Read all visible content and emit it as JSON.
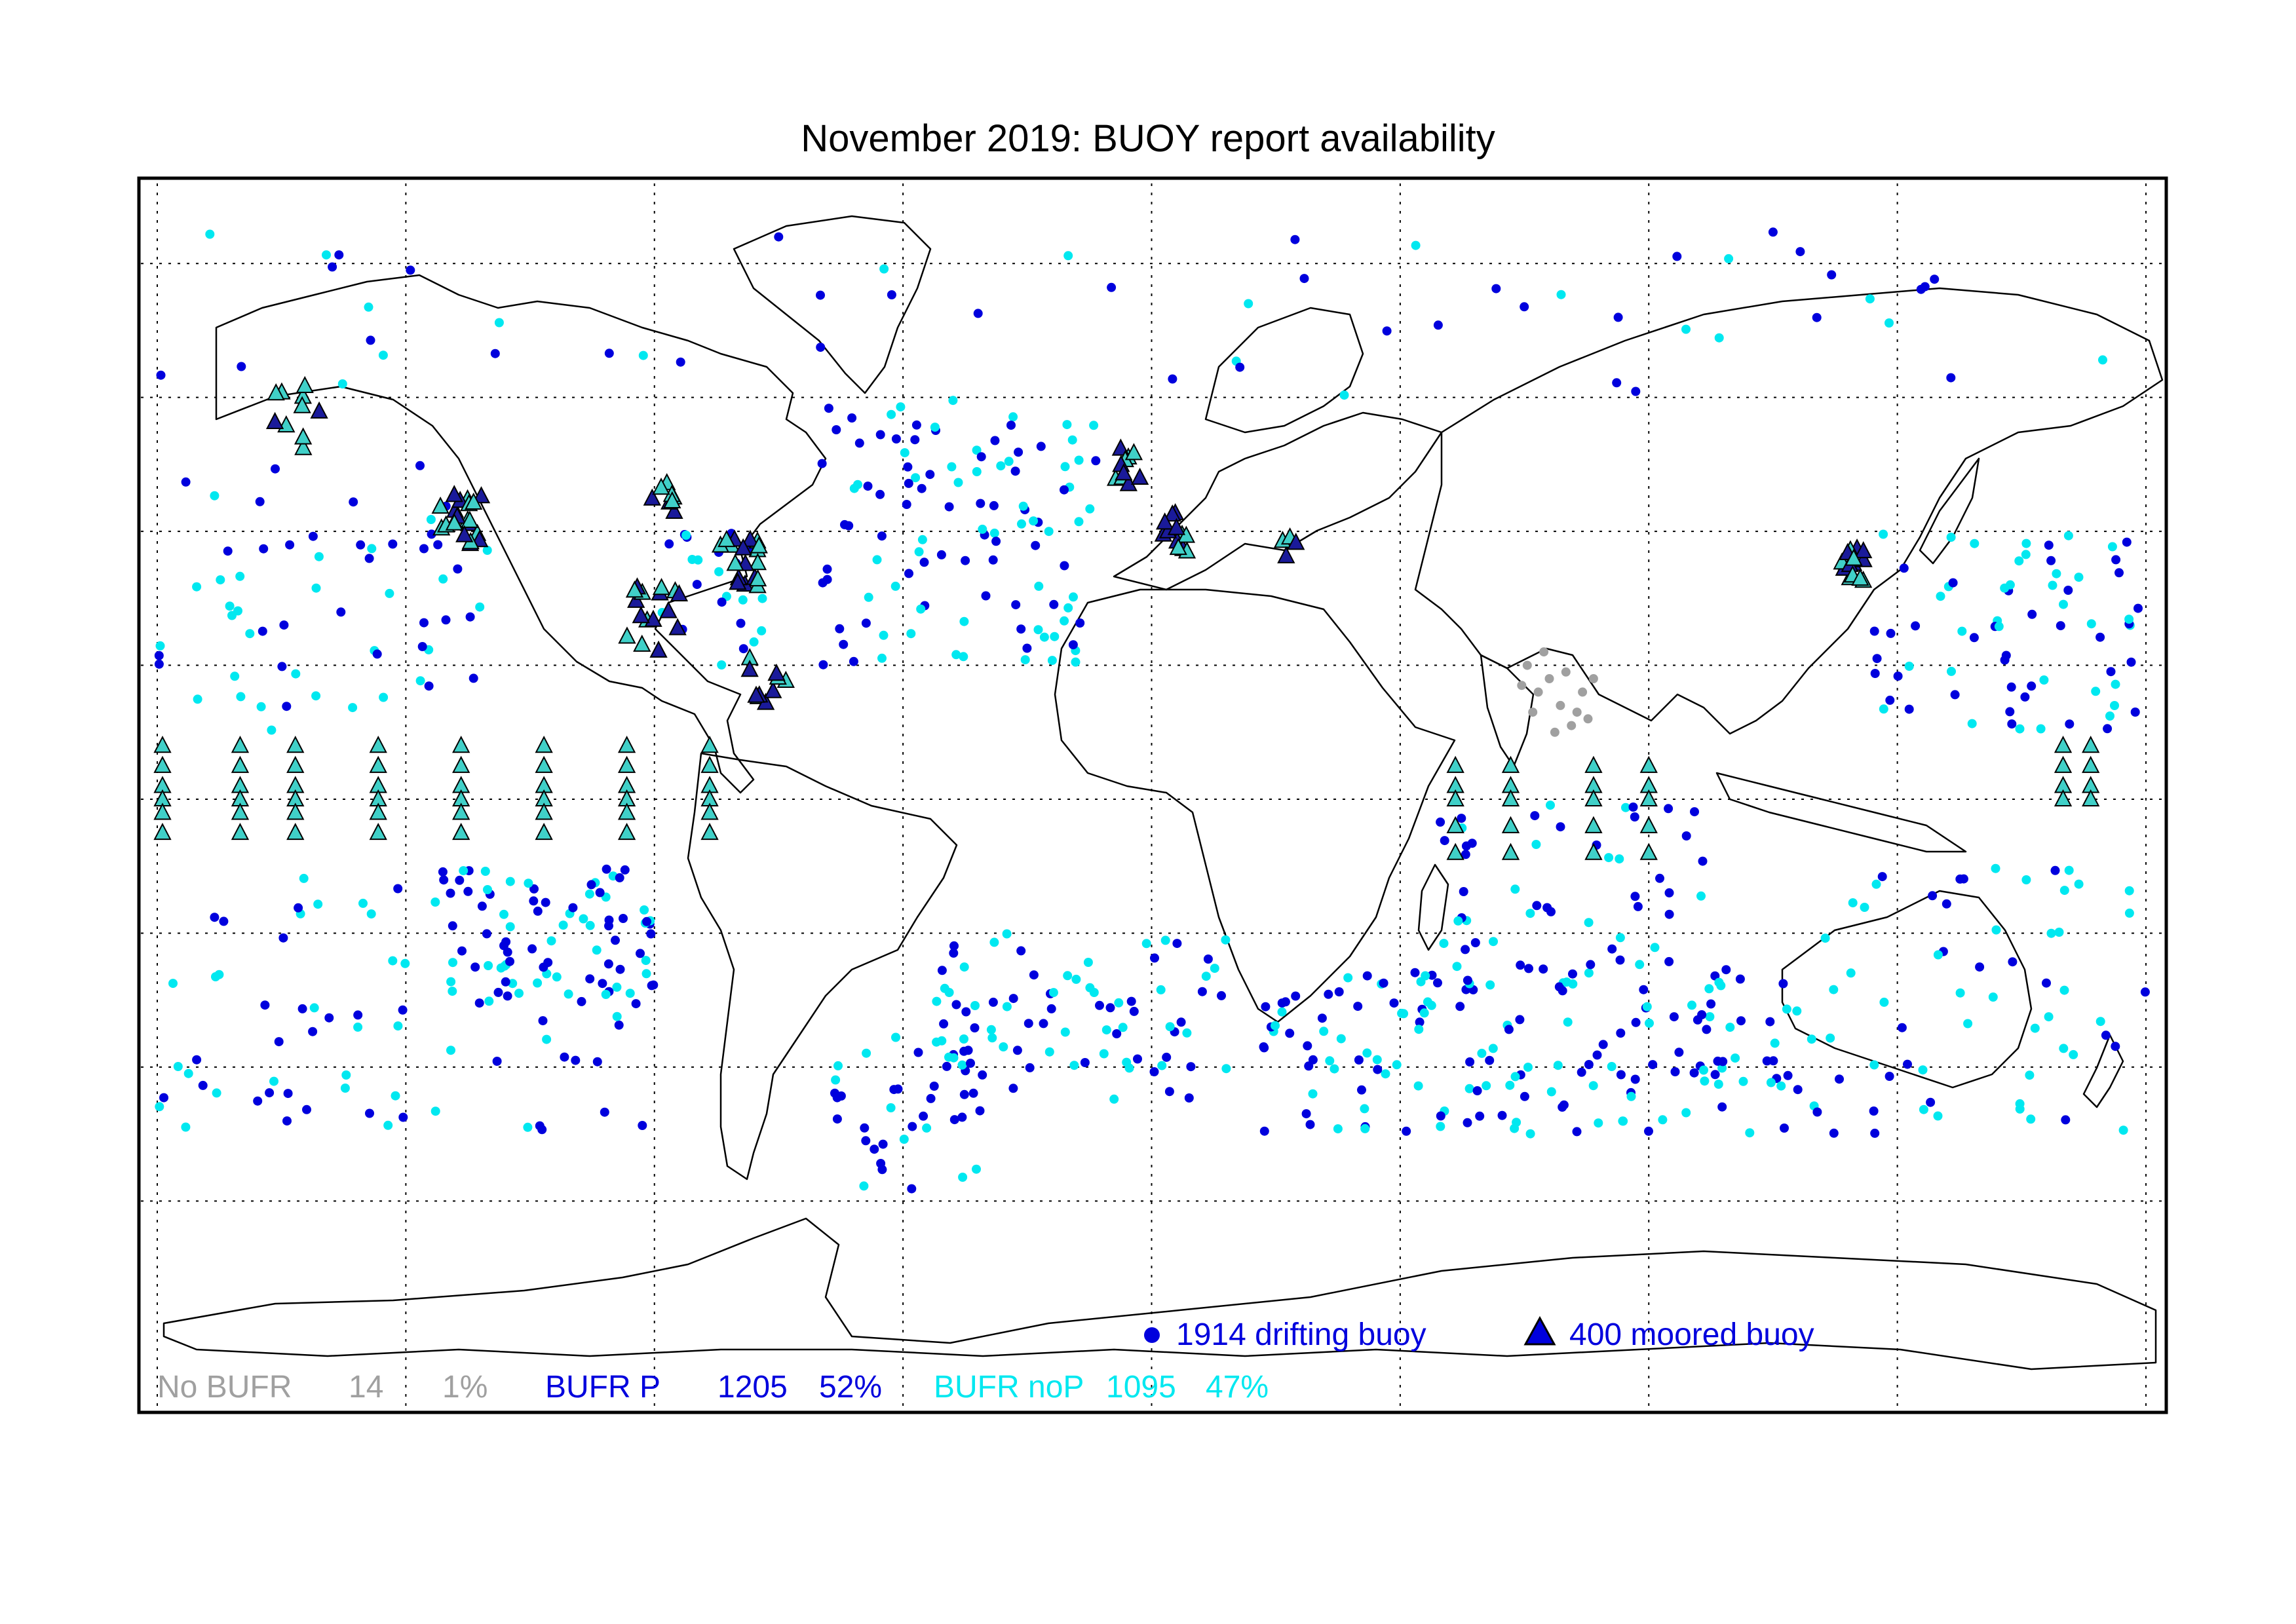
{
  "title": "November 2019: BUOY report availability",
  "colors": {
    "no_bufr": "#a0a0a0",
    "bufr_p": "#0000dd",
    "bufr_nop": "#00e8f0",
    "moored_fill_p": "#1a1a9a",
    "moored_fill_nop": "#40d0c8"
  },
  "legend": {
    "drifting_label": "1914 drifting buoy",
    "moored_label": "400 moored buoy"
  },
  "stats": {
    "no_bufr": {
      "label": "No BUFR",
      "count": "14",
      "percent": "1%"
    },
    "bufr_p": {
      "label": "BUFR P",
      "count": "1205",
      "percent": "52%"
    },
    "bufr_nop": {
      "label": "BUFR noP",
      "count": "1095",
      "percent": "47%"
    }
  },
  "map": {
    "projection": "equirectangular",
    "lon_range": [
      -180,
      180
    ],
    "lat_range": [
      -90,
      90
    ],
    "grid_lon_step": 45,
    "grid_lat_step": 20,
    "grid": "dotted"
  }
}
